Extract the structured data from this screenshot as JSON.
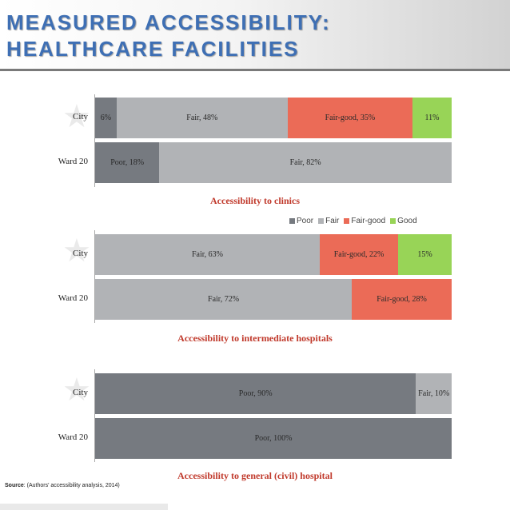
{
  "header": {
    "title_line1": "MEASURED ACCESSIBILITY:",
    "title_line2": "HEALTHCARE FACILITIES"
  },
  "colors": {
    "Poor": "#767a80",
    "Fair": "#b1b3b6",
    "Fair-good": "#eb6b57",
    "Good": "#98d457"
  },
  "legend": [
    "Poor",
    "Fair",
    "Fair-good",
    "Good"
  ],
  "chart_data": [
    {
      "type": "bar",
      "orientation": "horizontal-stacked",
      "title": "Accessibility to clinics",
      "categories": [
        "City",
        "Ward 20"
      ],
      "series": [
        {
          "name": "Poor",
          "values": [
            6,
            18
          ],
          "labels": [
            "6%",
            "Poor, 18%"
          ]
        },
        {
          "name": "Fair",
          "values": [
            48,
            82
          ],
          "labels": [
            "Fair, 48%",
            "Fair, 82%"
          ]
        },
        {
          "name": "Fair-good",
          "values": [
            35,
            0
          ],
          "labels": [
            "Fair-good, 35%",
            ""
          ]
        },
        {
          "name": "Good",
          "values": [
            11,
            0
          ],
          "labels": [
            "11%",
            ""
          ]
        }
      ],
      "xlim": [
        0,
        100
      ]
    },
    {
      "type": "bar",
      "orientation": "horizontal-stacked",
      "title": "Accessibility to intermediate hospitals",
      "categories": [
        "City",
        "Ward 20"
      ],
      "series": [
        {
          "name": "Poor",
          "values": [
            0,
            0
          ],
          "labels": [
            "",
            ""
          ]
        },
        {
          "name": "Fair",
          "values": [
            63,
            72
          ],
          "labels": [
            "Fair, 63%",
            "Fair, 72%"
          ]
        },
        {
          "name": "Fair-good",
          "values": [
            22,
            28
          ],
          "labels": [
            "Fair-good, 22%",
            "Fair-good, 28%"
          ]
        },
        {
          "name": "Good",
          "values": [
            15,
            0
          ],
          "labels": [
            "15%",
            ""
          ]
        }
      ],
      "xlim": [
        0,
        100
      ]
    },
    {
      "type": "bar",
      "orientation": "horizontal-stacked",
      "title": "Accessibility to general (civil) hospital",
      "categories": [
        "City",
        "Ward 20"
      ],
      "series": [
        {
          "name": "Poor",
          "values": [
            90,
            100
          ],
          "labels": [
            "Poor, 90%",
            "Poor, 100%"
          ]
        },
        {
          "name": "Fair",
          "values": [
            10,
            0
          ],
          "labels": [
            "Fair, 10%",
            ""
          ]
        },
        {
          "name": "Fair-good",
          "values": [
            0,
            0
          ],
          "labels": [
            "",
            ""
          ]
        },
        {
          "name": "Good",
          "values": [
            0,
            0
          ],
          "labels": [
            "",
            ""
          ]
        }
      ],
      "xlim": [
        0,
        100
      ]
    }
  ],
  "source": {
    "label": "Source",
    "text": ": (Authors' accessibility analysis, 2014)"
  }
}
